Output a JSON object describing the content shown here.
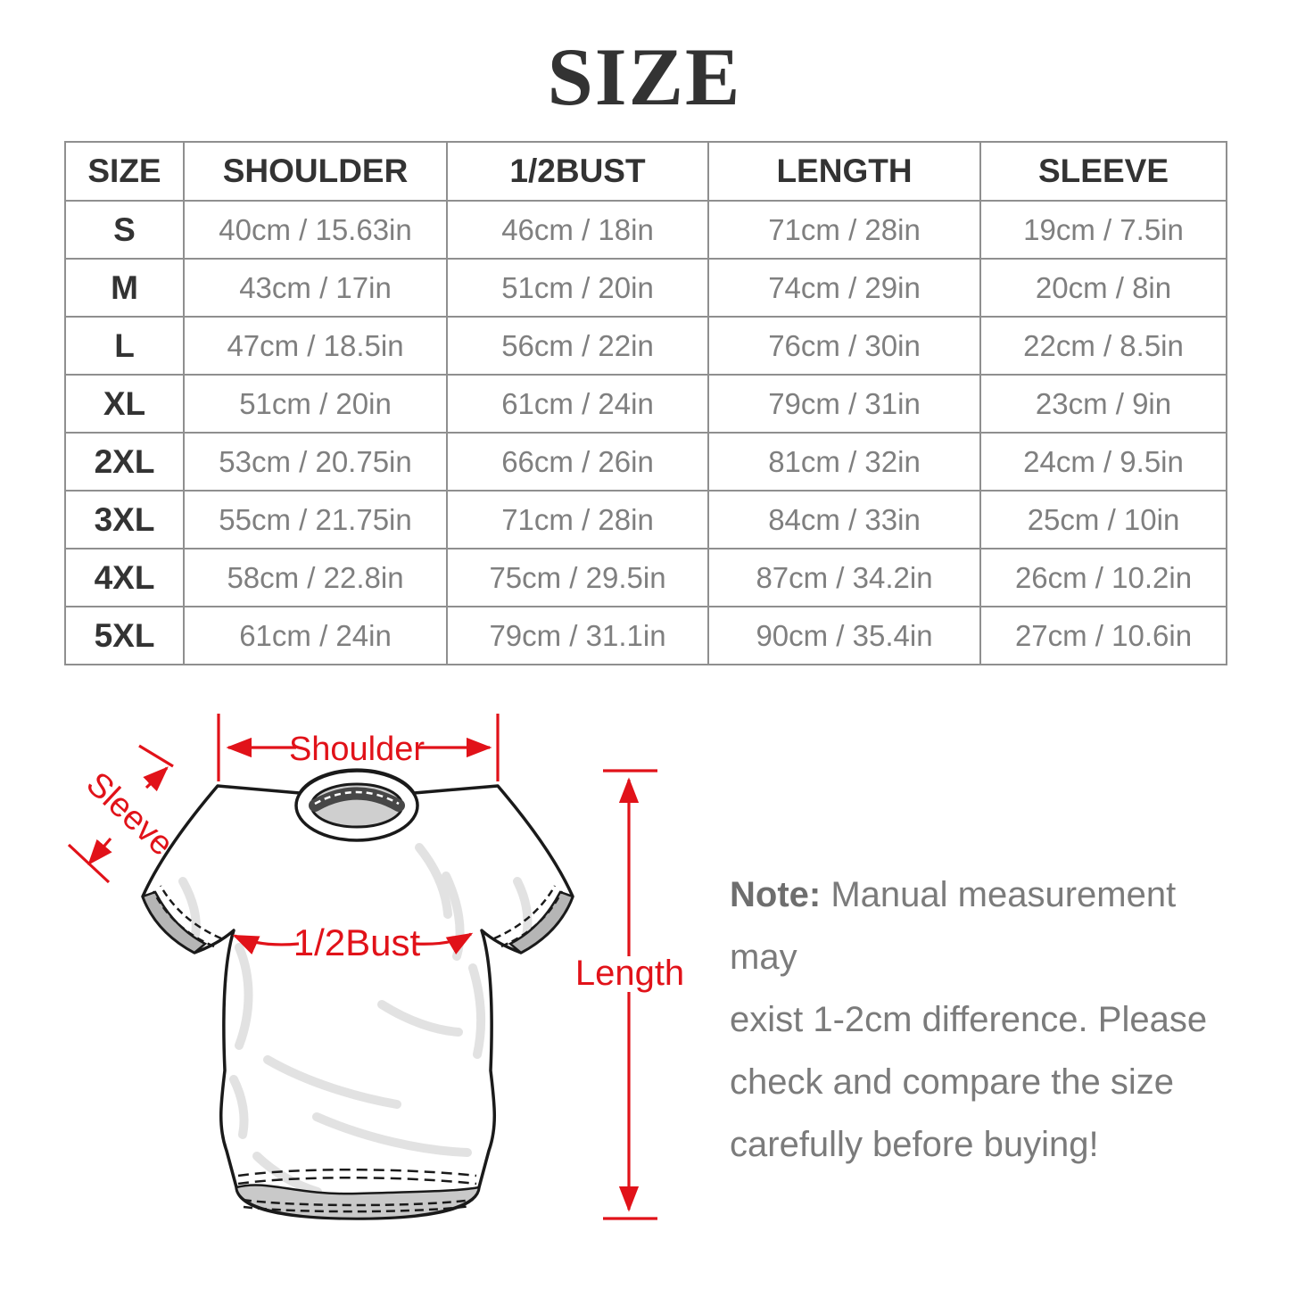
{
  "title": "SIZE",
  "table": {
    "headers": [
      "SIZE",
      "SHOULDER",
      "1/2BUST",
      "LENGTH",
      "SLEEVE"
    ],
    "rows": [
      [
        "S",
        "40cm / 15.63in",
        "46cm / 18in",
        "71cm / 28in",
        "19cm / 7.5in"
      ],
      [
        "M",
        "43cm / 17in",
        "51cm / 20in",
        "74cm / 29in",
        "20cm / 8in"
      ],
      [
        "L",
        "47cm / 18.5in",
        "56cm / 22in",
        "76cm / 30in",
        "22cm / 8.5in"
      ],
      [
        "XL",
        "51cm / 20in",
        "61cm / 24in",
        "79cm / 31in",
        "23cm / 9in"
      ],
      [
        "2XL",
        "53cm / 20.75in",
        "66cm / 26in",
        "81cm / 32in",
        "24cm / 9.5in"
      ],
      [
        "3XL",
        "55cm / 21.75in",
        "71cm / 28in",
        "84cm / 33in",
        "25cm / 10in"
      ],
      [
        "4XL",
        "58cm / 22.8in",
        "75cm / 29.5in",
        "87cm / 34.2in",
        "26cm / 10.2in"
      ],
      [
        "5XL",
        "61cm / 24in",
        "79cm / 31.1in",
        "90cm / 35.4in",
        "27cm / 10.6in"
      ]
    ]
  },
  "diagram": {
    "accent_color": "#e11219",
    "labels": {
      "shoulder": "Shoulder",
      "sleeve": "Sleeve",
      "bust": "1/2Bust",
      "length": "Length"
    }
  },
  "note": {
    "prefix": "Note:",
    "line1": " Manual measurement may",
    "line2": "exist 1-2cm difference. Please",
    "line3": "check and compare the size",
    "line4": "carefully before buying!"
  }
}
